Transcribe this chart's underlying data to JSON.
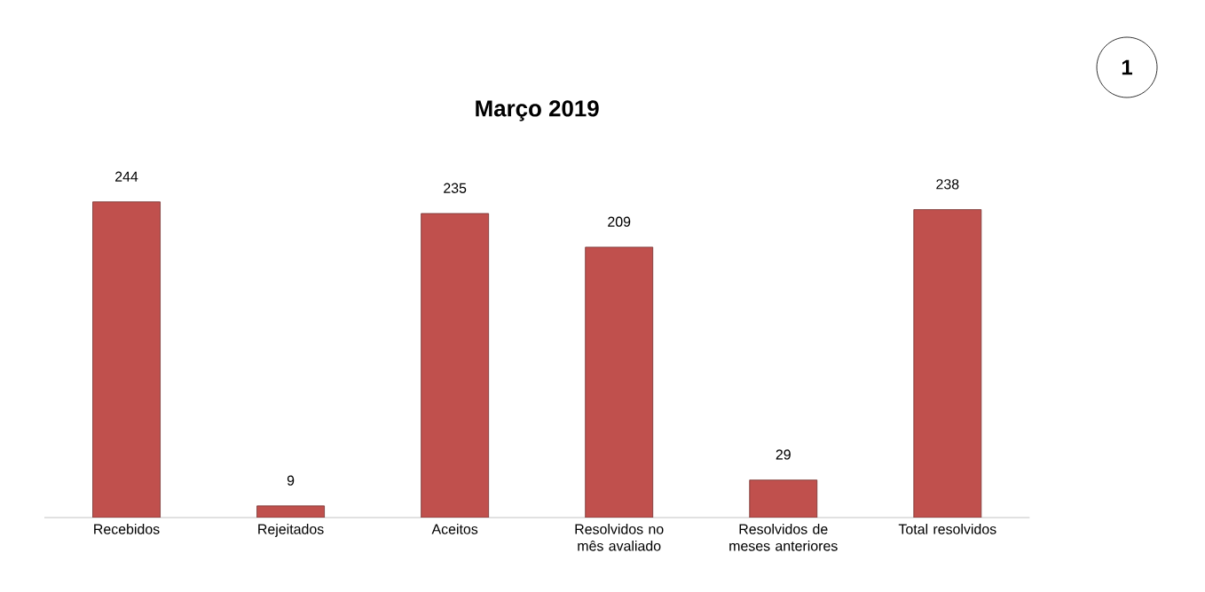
{
  "chart_data": {
    "type": "bar",
    "title": "Março 2019",
    "categories": [
      "Recebidos",
      "Rejeitados",
      "Aceitos",
      "Resolvidos no mês avaliado",
      "Resolvidos de meses anteriores",
      "Total resolvidos"
    ],
    "values": [
      244,
      9,
      235,
      209,
      29,
      238
    ],
    "color": "#c0504d",
    "data_labels": true,
    "tick_labels": "x",
    "annotations": [
      "1"
    ]
  }
}
